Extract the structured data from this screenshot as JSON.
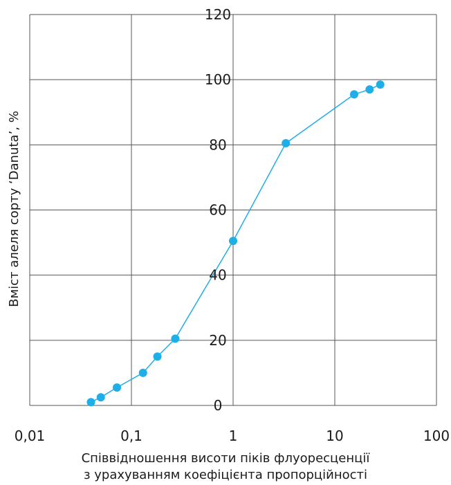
{
  "chart_data": {
    "type": "scatter",
    "x_scale": "log",
    "xlim": [
      0.01,
      100
    ],
    "ylim": [
      0,
      120
    ],
    "x_ticks": [
      0.01,
      0.1,
      1,
      10,
      100
    ],
    "x_tick_labels": [
      "0,01",
      "0,1",
      "1",
      "10",
      "100"
    ],
    "y_ticks": [
      0,
      20,
      40,
      60,
      80,
      100,
      120
    ],
    "y_tick_labels": [
      "0",
      "20",
      "40",
      "60",
      "80",
      "100",
      "120"
    ],
    "xlabel_lines": [
      "Співвідношення висоти піків флуоресценції",
      "з урахуванням коефіцієнта пропорційності"
    ],
    "ylabel": "Вміст алеля сорту ‘Danuta’, %",
    "grid": true,
    "color": "#1eaee8",
    "connected": true,
    "series": [
      {
        "x": [
          0.04,
          0.05,
          0.072,
          0.13,
          0.18,
          0.27,
          1.0,
          3.3,
          15.5,
          22,
          28
        ],
        "y": [
          1,
          2.5,
          5.5,
          10,
          15,
          20.5,
          50.5,
          80.5,
          95.5,
          97,
          98.5
        ]
      }
    ]
  }
}
